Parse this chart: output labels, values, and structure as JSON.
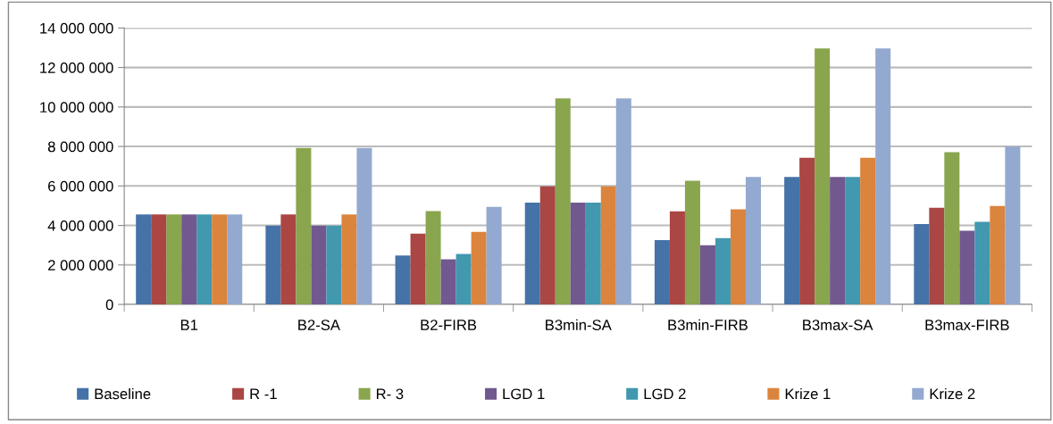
{
  "chart_data": {
    "type": "bar",
    "categories": [
      "B1",
      "B2-SA",
      "B2-FIRB",
      "B3min-SA",
      "B3min-FIRB",
      "B3max-SA",
      "B3max-FIRB"
    ],
    "series": [
      {
        "name": "Baseline",
        "color": "#4572a7",
        "values": [
          4560000,
          3990000,
          2480000,
          5160000,
          3260000,
          6450000,
          4070000
        ]
      },
      {
        "name": "R -1",
        "color": "#aa4643",
        "values": [
          4560000,
          4560000,
          3590000,
          5980000,
          4710000,
          7430000,
          4900000
        ]
      },
      {
        "name": "R- 3",
        "color": "#89a54e",
        "values": [
          4560000,
          7920000,
          4730000,
          10430000,
          6260000,
          12960000,
          7710000
        ]
      },
      {
        "name": "LGD 1",
        "color": "#71588f",
        "values": [
          4560000,
          3990000,
          2290000,
          5160000,
          3000000,
          6450000,
          3730000
        ]
      },
      {
        "name": "LGD 2",
        "color": "#4198af",
        "values": [
          4560000,
          3990000,
          2560000,
          5160000,
          3360000,
          6450000,
          4180000
        ]
      },
      {
        "name": "Krize 1",
        "color": "#db843d",
        "values": [
          4560000,
          4560000,
          3670000,
          5980000,
          4820000,
          7430000,
          4990000
        ]
      },
      {
        "name": "Krize 2",
        "color": "#93a9cf",
        "values": [
          4560000,
          7920000,
          4940000,
          10430000,
          6450000,
          12960000,
          7990000
        ]
      }
    ],
    "ylim": [
      0,
      14000000
    ],
    "yticks": [
      {
        "value": 0,
        "label": "0"
      },
      {
        "value": 2000000,
        "label": "2 000 000"
      },
      {
        "value": 4000000,
        "label": "4 000 000"
      },
      {
        "value": 6000000,
        "label": "6 000 000"
      },
      {
        "value": 8000000,
        "label": "8 000 000"
      },
      {
        "value": 10000000,
        "label": "10 000 000"
      },
      {
        "value": 12000000,
        "label": "12 000 000"
      },
      {
        "value": 14000000,
        "label": "14 000 000"
      }
    ],
    "grid": "y",
    "legend": "bottom"
  }
}
